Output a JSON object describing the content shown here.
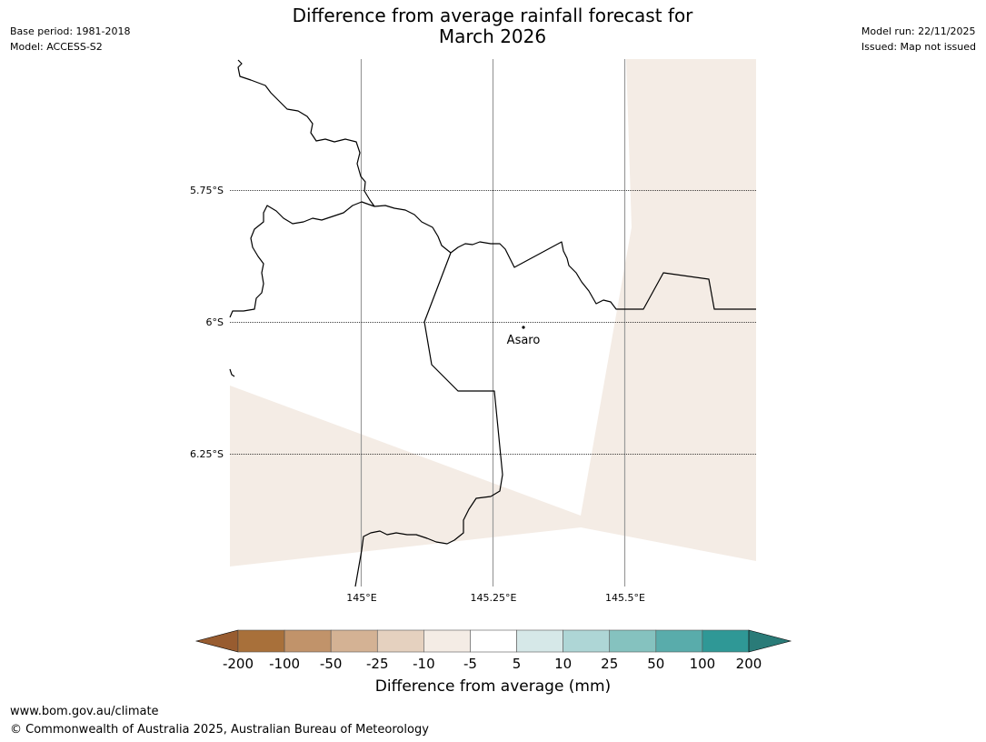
{
  "header": {
    "base_period": "Base period: 1981-2018",
    "model": "Model: ACCESS-S2",
    "model_run": "Model run: 22/11/2025",
    "issued": "Issued: Map not issued",
    "title_line1": "Difference from average rainfall forecast for",
    "title_line2": "March 2026"
  },
  "map": {
    "lat_labels": [
      "5.75°S",
      "6°S",
      "6.25°S"
    ],
    "lon_labels": [
      "145°E",
      "145.25°E",
      "145.5°E"
    ],
    "place": "Asaro",
    "shaded_category": "-10 to -5"
  },
  "colorbar": {
    "ticks": [
      "-200",
      "-100",
      "-50",
      "-25",
      "-10",
      "-5",
      "5",
      "10",
      "25",
      "50",
      "100",
      "200"
    ],
    "colors": [
      "#a8703a",
      "#c1936a",
      "#d4b294",
      "#e5d1bf",
      "#f4ece5",
      "#ffffff",
      "#d6e8e8",
      "#aed6d6",
      "#85c2bf",
      "#59acab",
      "#2f9896"
    ],
    "extend_low_color": "#985c30",
    "extend_high_color": "#2a7b78",
    "label": "Difference from average (mm)"
  },
  "footer": {
    "url": "www.bom.gov.au/climate",
    "copyright": "© Commonwealth of Australia 2025, Australian Bureau of Meteorology"
  }
}
